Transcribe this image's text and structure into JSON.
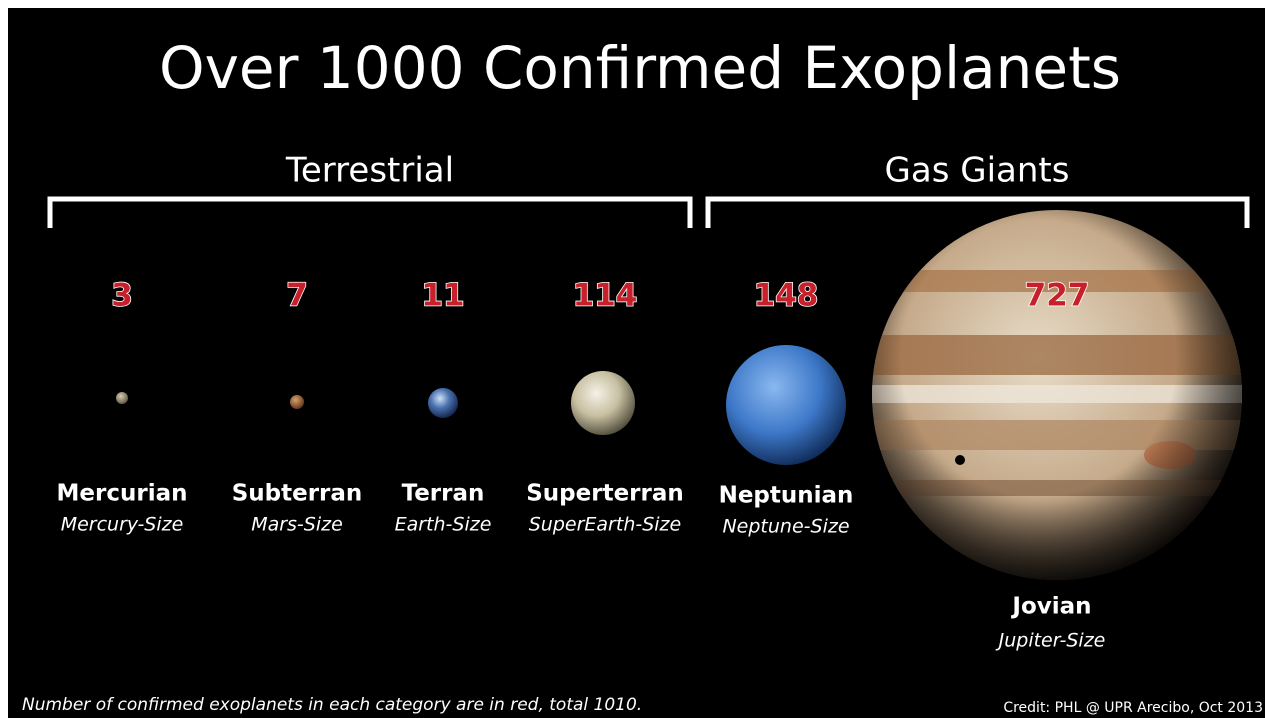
{
  "title": "Over 1000 Confirmed Exoplanets",
  "groups": [
    {
      "label": "Terrestrial"
    },
    {
      "label": "Gas Giants"
    }
  ],
  "planets": [
    {
      "count": 3,
      "name": "Mercurian",
      "size": "Mercury-Size"
    },
    {
      "count": 7,
      "name": "Subterran",
      "size": "Mars-Size"
    },
    {
      "count": 11,
      "name": "Terran",
      "size": "Earth-Size"
    },
    {
      "count": 114,
      "name": "Superterran",
      "size": "SuperEarth-Size"
    },
    {
      "count": 148,
      "name": "Neptunian",
      "size": "Neptune-Size"
    },
    {
      "count": 727,
      "name": "Jovian",
      "size": "Jupiter-Size"
    }
  ],
  "footnote": "Number of confirmed exoplanets in each category are in red, total 1010.",
  "credit": "Credit: PHL @ UPR Arecibo, Oct 2013"
}
